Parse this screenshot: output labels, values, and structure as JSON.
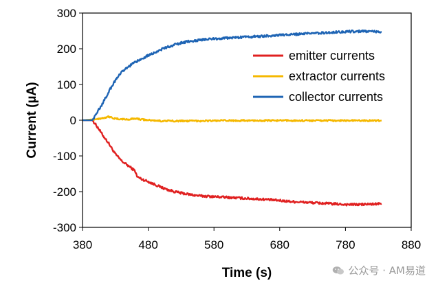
{
  "chart_data": {
    "type": "line",
    "xlabel": "Time (s)",
    "ylabel": "Current (µA)",
    "xlim": [
      380,
      880
    ],
    "ylim": [
      -300,
      300
    ],
    "xticks": [
      380,
      480,
      580,
      680,
      780,
      880
    ],
    "yticks": [
      300,
      200,
      100,
      0,
      -100,
      -200,
      -300
    ],
    "grid": false,
    "legend_position": "top-right",
    "series": [
      {
        "name": "emitter currents",
        "color": "#e02020",
        "x": [
          380,
          395,
          400,
          405,
          410,
          420,
          430,
          440,
          450,
          460,
          463,
          470,
          480,
          490,
          500,
          510,
          520,
          530,
          540,
          550,
          560,
          580,
          600,
          620,
          640,
          660,
          680,
          700,
          720,
          740,
          760,
          780,
          800,
          820,
          835
        ],
        "y": [
          0,
          0,
          -12,
          -25,
          -40,
          -65,
          -95,
          -115,
          -128,
          -142,
          -158,
          -165,
          -172,
          -180,
          -188,
          -195,
          -200,
          -204,
          -207,
          -210,
          -212,
          -214,
          -216,
          -218,
          -220,
          -222,
          -225,
          -228,
          -230,
          -232,
          -234,
          -236,
          -236,
          -235,
          -234
        ]
      },
      {
        "name": "extractor currents",
        "color": "#f5b800",
        "x": [
          380,
          400,
          410,
          420,
          430,
          440,
          450,
          460,
          470,
          480,
          500,
          550,
          600,
          650,
          700,
          750,
          800,
          835
        ],
        "y": [
          0,
          3,
          6,
          10,
          4,
          3,
          2,
          5,
          2,
          0,
          -2,
          -2,
          -1,
          -1,
          -1,
          -1,
          -1,
          -1
        ]
      },
      {
        "name": "collector currents",
        "color": "#1e64b4",
        "x": [
          380,
          395,
          400,
          410,
          420,
          430,
          440,
          450,
          460,
          470,
          480,
          490,
          500,
          510,
          520,
          530,
          540,
          560,
          580,
          600,
          620,
          640,
          660,
          680,
          700,
          720,
          740,
          760,
          780,
          800,
          820,
          835
        ],
        "y": [
          0,
          0,
          15,
          45,
          80,
          112,
          135,
          150,
          162,
          172,
          182,
          190,
          198,
          205,
          211,
          216,
          220,
          225,
          228,
          230,
          232,
          234,
          236,
          238,
          240,
          242,
          244,
          246,
          248,
          249,
          249,
          247
        ]
      }
    ]
  },
  "watermark": {
    "icon": "wechat-icon",
    "text": "公众号 · AM易道"
  }
}
